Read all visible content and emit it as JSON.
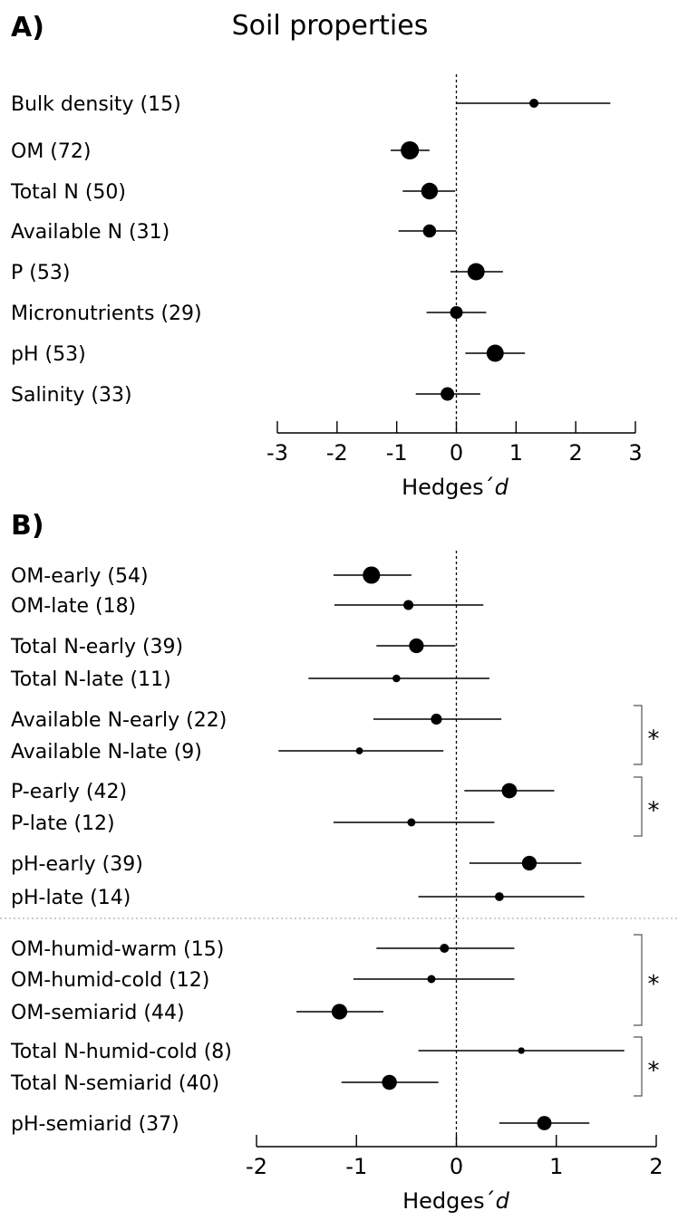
{
  "chart_data": [
    {
      "type": "forest",
      "panel_label": "A)",
      "title": "Soil properties",
      "xlabel_main": "Hedges´",
      "xlabel_italic": "d",
      "xlim": [
        -3,
        3
      ],
      "xticks": [
        -3,
        -2,
        -1,
        0,
        1,
        2,
        3
      ],
      "reference_line": 0,
      "rows": [
        {
          "label": "Bulk density (15)",
          "mean": 1.3,
          "lo": 0.0,
          "hi": 2.58,
          "n": 15
        },
        {
          "label": "OM (72)",
          "mean": -0.78,
          "lo": -1.1,
          "hi": -0.45,
          "n": 72
        },
        {
          "label": "Total N (50)",
          "mean": -0.45,
          "lo": -0.9,
          "hi": -0.02,
          "n": 50
        },
        {
          "label": "Available N (31)",
          "mean": -0.45,
          "lo": -0.97,
          "hi": 0.0,
          "n": 31
        },
        {
          "label": "P (53)",
          "mean": 0.33,
          "lo": -0.1,
          "hi": 0.78,
          "n": 53
        },
        {
          "label": "Micronutrients (29)",
          "mean": 0.0,
          "lo": -0.5,
          "hi": 0.5,
          "n": 29
        },
        {
          "label": "pH (53)",
          "mean": 0.65,
          "lo": 0.15,
          "hi": 1.15,
          "n": 53
        },
        {
          "label": "Salinity (33)",
          "mean": -0.15,
          "lo": -0.68,
          "hi": 0.4,
          "n": 33
        }
      ]
    },
    {
      "type": "forest",
      "panel_label": "B)",
      "title": "",
      "xlabel_main": "Hedges´",
      "xlabel_italic": "d",
      "xlim": [
        -2,
        2
      ],
      "xticks": [
        -2,
        -1,
        0,
        1,
        2
      ],
      "reference_line": 0,
      "rows": [
        {
          "label": "OM-early (54)",
          "mean": -0.85,
          "lo": -1.23,
          "hi": -0.45,
          "n": 54
        },
        {
          "label": "OM-late (18)",
          "mean": -0.48,
          "lo": -1.22,
          "hi": 0.27,
          "n": 18
        },
        {
          "label": "Total N-early (39)",
          "mean": -0.4,
          "lo": -0.8,
          "hi": -0.01,
          "n": 39
        },
        {
          "label": "Total N-late (11)",
          "mean": -0.6,
          "lo": -1.48,
          "hi": 0.33,
          "n": 11
        },
        {
          "label": "Available N-early (22)",
          "mean": -0.2,
          "lo": -0.83,
          "hi": 0.45,
          "n": 22
        },
        {
          "label": "Available N-late (9)",
          "mean": -0.97,
          "lo": -1.78,
          "hi": -0.13,
          "n": 9
        },
        {
          "label": "P-early (42)",
          "mean": 0.53,
          "lo": 0.08,
          "hi": 0.98,
          "n": 42
        },
        {
          "label": "P-late (12)",
          "mean": -0.45,
          "lo": -1.23,
          "hi": 0.38,
          "n": 12
        },
        {
          "label": "pH-early (39)",
          "mean": 0.73,
          "lo": 0.13,
          "hi": 1.25,
          "n": 39
        },
        {
          "label": "pH-late (14)",
          "mean": 0.43,
          "lo": -0.38,
          "hi": 1.28,
          "n": 14
        },
        {
          "label": "OM-humid-warm (15)",
          "mean": -0.12,
          "lo": -0.8,
          "hi": 0.58,
          "n": 15
        },
        {
          "label": "OM-humid-cold (12)",
          "mean": -0.25,
          "lo": -1.03,
          "hi": 0.58,
          "n": 12
        },
        {
          "label": "OM-semiarid (44)",
          "mean": -1.17,
          "lo": -1.6,
          "hi": -0.73,
          "n": 44
        },
        {
          "label": "Total N-humid-cold (8)",
          "mean": 0.65,
          "lo": -0.38,
          "hi": 1.68,
          "n": 8
        },
        {
          "label": "Total N-semiarid (40)",
          "mean": -0.67,
          "lo": -1.15,
          "hi": -0.18,
          "n": 40
        },
        {
          "label": "pH-semiarid (37)",
          "mean": 0.88,
          "lo": 0.43,
          "hi": 1.33,
          "n": 37
        }
      ],
      "significance": [
        {
          "rows": [
            4,
            5
          ],
          "mark": "*"
        },
        {
          "rows": [
            6,
            7
          ],
          "mark": "*"
        },
        {
          "rows": [
            10,
            12
          ],
          "mark": "*"
        },
        {
          "rows": [
            13,
            14
          ],
          "mark": "*"
        }
      ]
    }
  ]
}
